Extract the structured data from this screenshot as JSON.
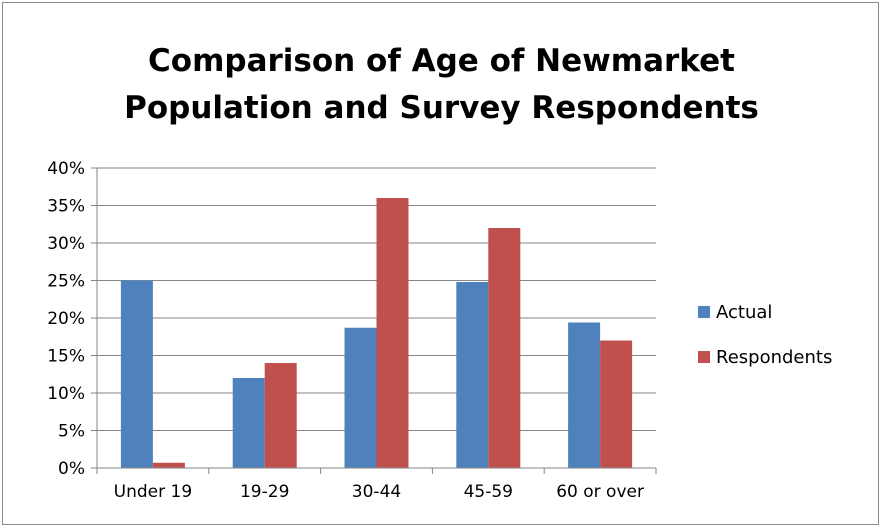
{
  "chart_data": {
    "type": "bar",
    "title": "Comparison of Age of Newmarket Population and Survey Respondents",
    "title_lines": [
      "Comparison of Age of Newmarket",
      "Population and Survey Respondents"
    ],
    "categories": [
      "Under 19",
      "19-29",
      "30-44",
      "45-59",
      "60 or over"
    ],
    "series": [
      {
        "name": "Actual",
        "color": "#4f81bd",
        "values": [
          0.25,
          0.12,
          0.187,
          0.248,
          0.194
        ]
      },
      {
        "name": "Respondents",
        "color": "#c0504d",
        "values": [
          0.007,
          0.14,
          0.36,
          0.32,
          0.17
        ]
      }
    ],
    "ylim": [
      0,
      0.4
    ],
    "y_ticks": [
      0,
      0.05,
      0.1,
      0.15,
      0.2,
      0.25,
      0.3,
      0.35,
      0.4
    ],
    "y_tick_labels": [
      "0%",
      "5%",
      "10%",
      "15%",
      "20%",
      "25%",
      "30%",
      "35%",
      "40%"
    ],
    "xlabel": "",
    "ylabel": "",
    "grid": true,
    "legend_position": "right"
  }
}
